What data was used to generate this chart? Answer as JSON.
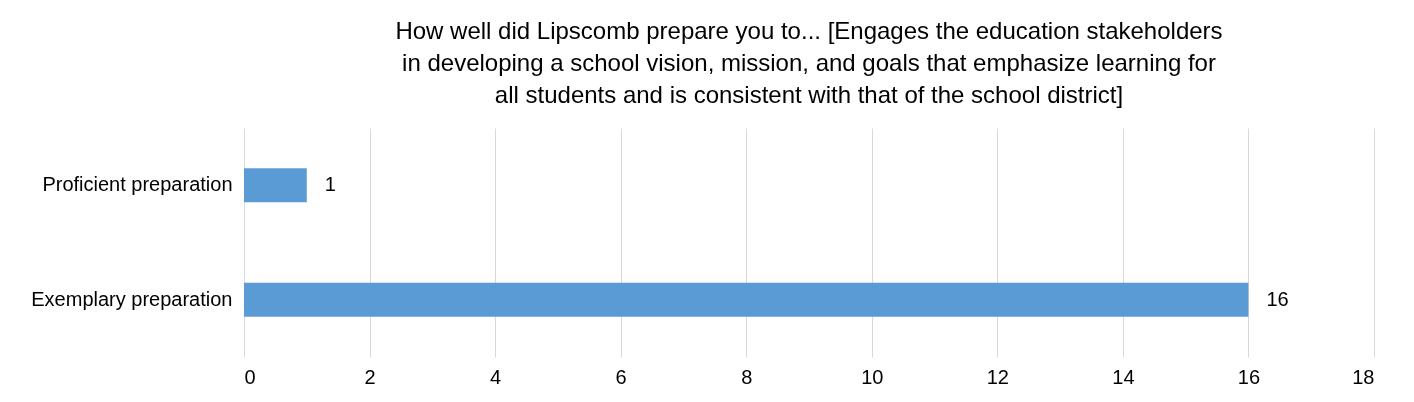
{
  "chart_data": {
    "type": "bar",
    "orientation": "horizontal",
    "title": "How well did Lipscomb prepare you to... [Engages the education stakeholders in developing a school vision, mission, and goals that emphasize learning for all students and is consistent with that of the school district]",
    "categories": [
      "Proficient preparation",
      "Exemplary preparation"
    ],
    "values": [
      1,
      16
    ],
    "color": "#5b9bd5",
    "xlim": [
      0,
      18
    ],
    "xticks": [
      0,
      2,
      4,
      6,
      8,
      10,
      12,
      14,
      16,
      18
    ],
    "grid": "x",
    "data_labels": true
  }
}
